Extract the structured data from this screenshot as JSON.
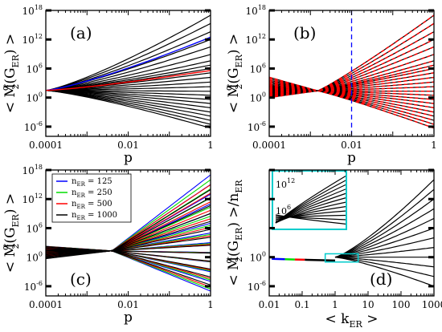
{
  "figure": {
    "panels": [
      {
        "id": "a",
        "label": "(a)",
        "ylabel": {
          "pre": "< M",
          "sub": "2",
          "sup": "α",
          "mid": "(G",
          "sub2": "ER",
          "post": ") >"
        },
        "xlabel": "p",
        "xticks": [
          "0.0001",
          "0.01",
          "1"
        ],
        "yticks": [
          {
            "b": "10",
            "e": "18"
          },
          {
            "b": "10",
            "e": "12"
          },
          {
            "b": "10",
            "e": "6"
          },
          {
            "b": "10",
            "e": "0"
          },
          {
            "b": "10",
            "e": "-6"
          }
        ]
      },
      {
        "id": "b",
        "label": "(b)",
        "ylabel": {
          "pre": "< M",
          "sub": "2",
          "sup": "α",
          "mid": "(G",
          "sub2": "ER",
          "post": ") >"
        },
        "xlabel": "p",
        "xticks": [
          "0.0001",
          "0.01",
          "1"
        ],
        "yticks": [
          {
            "b": "10",
            "e": "18"
          },
          {
            "b": "10",
            "e": "12"
          },
          {
            "b": "10",
            "e": "6"
          },
          {
            "b": "10",
            "e": "0"
          },
          {
            "b": "10",
            "e": "-6"
          }
        ]
      },
      {
        "id": "c",
        "label": "(c)",
        "ylabel": {
          "pre": "< M",
          "sub": "2",
          "sup": "α",
          "mid": "(G",
          "sub2": "ER",
          "post": ") >"
        },
        "xlabel": "p",
        "xticks": [
          "0.0001",
          "0.01",
          "1"
        ],
        "yticks": [
          {
            "b": "10",
            "e": "18"
          },
          {
            "b": "10",
            "e": "12"
          },
          {
            "b": "10",
            "e": "6"
          },
          {
            "b": "10",
            "e": "0"
          },
          {
            "b": "10",
            "e": "-6"
          }
        ],
        "legend": [
          {
            "pre": "n",
            "sub": "ER",
            "post": " = 125",
            "color": "#0000ff"
          },
          {
            "pre": "n",
            "sub": "ER",
            "post": " = 250",
            "color": "#00dd00"
          },
          {
            "pre": "n",
            "sub": "ER",
            "post": " = 500",
            "color": "#ff0000"
          },
          {
            "pre": "n",
            "sub": "ER",
            "post": " = 1000",
            "color": "#000000"
          }
        ]
      },
      {
        "id": "d",
        "label": "(d)",
        "ylabel": {
          "pre": "< M",
          "sub": "2",
          "sup": "α",
          "mid": "(G",
          "sub2": "ER",
          "post": ") >/n",
          "sub3": "ER"
        },
        "xlabel": {
          "pre": "< k",
          "sub": "ER",
          "post": " >"
        },
        "xticks": [
          "0.01",
          "0.1",
          "1",
          "10",
          "100",
          "1000"
        ],
        "yticks": [
          {
            "b": "10",
            "e": "0"
          },
          {
            "b": "10",
            "e": "-6"
          }
        ],
        "inset_yticks": [
          {
            "b": "10",
            "e": "12"
          },
          {
            "b": "10",
            "e": "6"
          }
        ]
      }
    ]
  },
  "chart_data": [
    {
      "panel": "a",
      "type": "line",
      "x_scale": "log",
      "y_scale": "log",
      "xlim": [
        0.0001,
        1
      ],
      "ylim": [
        1e-08,
        1e+18
      ],
      "n_ER": 1000,
      "x_anchors": [
        0.0001,
        0.001,
        0.01,
        0.1,
        1
      ],
      "series_note": "fan of curves, one per alpha; y(p) ≈ y0(p) · slope_exponent spread",
      "value_at_p_1e-4": 30,
      "endpoint_values_at_p_1": [
        1e+17,
        2000000000000000.0,
        40000000000000.0,
        1000000000000.0,
        30000000000.0,
        800000000.0,
        40000000.0,
        5000000.0,
        1000000.0,
        130000.0,
        15000.0,
        1600.0,
        180.0,
        20,
        3,
        0.4,
        0.06,
        0.008,
        0.001,
        0.00015,
        2e-05,
        3e-06,
        5e-07
      ],
      "highlighted": [
        {
          "color": "#0000ff",
          "value_at_p_1": 3000000000000.0
        },
        {
          "color": "#ff0000",
          "value_at_p_1": 400000.0
        }
      ]
    },
    {
      "panel": "b",
      "type": "line",
      "x_scale": "log",
      "y_scale": "log",
      "xlim": [
        0.0001,
        1
      ],
      "ylim": [
        1e-08,
        1e+18
      ],
      "vline_x": 0.01,
      "vline_color": "#0000ff",
      "series_style": "black solid with red dashed overlay",
      "node_x": 0.0015,
      "node_y": 25,
      "endpoint_values_at_p_1": [
        1e+17,
        2000000000000000.0,
        40000000000000.0,
        1000000000000.0,
        30000000000.0,
        800000000.0,
        40000000.0,
        5000000.0,
        1000000.0,
        130000.0,
        15000.0,
        1600.0,
        180.0,
        20,
        3,
        0.4,
        0.06,
        0.008,
        0.001,
        0.00015,
        2e-05,
        3e-06,
        5e-07
      ]
    },
    {
      "panel": "c",
      "type": "line",
      "x_scale": "log",
      "y_scale": "log",
      "xlim": [
        0.0001,
        1
      ],
      "ylim": [
        1e-08,
        1e+18
      ],
      "series": [
        {
          "name": "n_ER = 125",
          "color": "#0000ff"
        },
        {
          "name": "n_ER = 250",
          "color": "#00dd00"
        },
        {
          "name": "n_ER = 500",
          "color": "#ff0000"
        },
        {
          "name": "n_ER = 1000",
          "color": "#000000"
        }
      ],
      "node_x": 0.004,
      "node_y": 20,
      "endpoint_values_at_p_1": [
        1e+17,
        1000000000000000.0,
        10000000000000.0,
        100000000000.0,
        1000000000.0,
        10000000.0,
        100000.0,
        1000.0,
        10,
        0.1,
        0.001,
        1e-05,
        1e-07
      ]
    },
    {
      "panel": "d",
      "type": "line",
      "x_scale": "log",
      "y_scale": "log",
      "xlim": [
        0.01,
        1000
      ],
      "ylim": [
        1e-08,
        1e+18
      ],
      "xlabel": "< k_ER >",
      "collapse_x": 1,
      "collapse_y": 1,
      "low_k_colors": [
        "#0000ff",
        "#00dd00",
        "#ff0000",
        "#000000"
      ],
      "endpoint_values_at_k_1000": [
        1e+16,
        100000000000000.0,
        1000000000000.0,
        10000000000.0,
        100000000.0,
        1000000.0,
        10000.0,
        100,
        1,
        0.01,
        0.0001,
        1e-06
      ],
      "inset_box": {
        "color": "#00cccc",
        "x_range": [
          0.5,
          5
        ],
        "y_range": [
          0.1,
          5
        ]
      }
    }
  ]
}
